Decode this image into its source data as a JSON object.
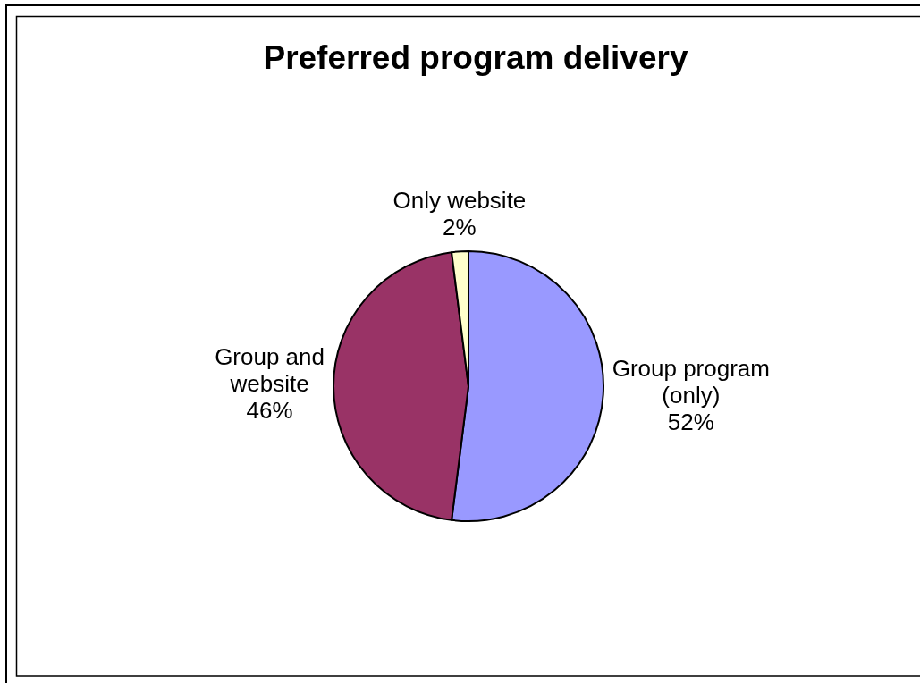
{
  "chart_data": {
    "type": "pie",
    "title": "Preferred program delivery",
    "categories": [
      "Group program (only)",
      "Group and website",
      "Only website"
    ],
    "values": [
      52,
      46,
      2
    ],
    "colors": [
      "#9999ff",
      "#993366",
      "#ffffcc"
    ],
    "value_labels": [
      "52%",
      "46%",
      "2%"
    ]
  }
}
